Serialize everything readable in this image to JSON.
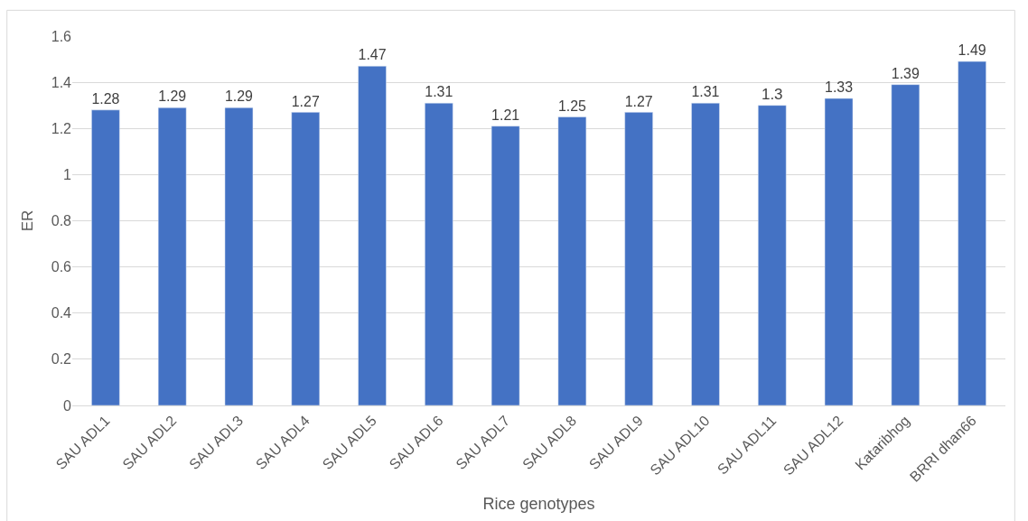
{
  "chart_data": {
    "type": "bar",
    "xlabel": "Rice genotypes",
    "ylabel": "ER",
    "categories": [
      "SAU ADL1",
      "SAU ADL2",
      "SAU ADL3",
      "SAU ADL4",
      "SAU ADL5",
      "SAU ADL6",
      "SAU ADL7",
      "SAU ADL8",
      "SAU ADL9",
      "SAU ADL10",
      "SAU ADL11",
      "SAU ADL12",
      "Kataribhog",
      "BRRI dhan66"
    ],
    "values": [
      1.28,
      1.29,
      1.29,
      1.27,
      1.47,
      1.31,
      1.21,
      1.25,
      1.27,
      1.31,
      1.3,
      1.33,
      1.39,
      1.49
    ],
    "color": "#4472c4",
    "ylim": [
      0,
      1.6
    ],
    "yticks": [
      0,
      0.2,
      0.4,
      0.6,
      0.8,
      1,
      1.2,
      1.4,
      1.6
    ],
    "grid": "y",
    "data_labels": true
  }
}
